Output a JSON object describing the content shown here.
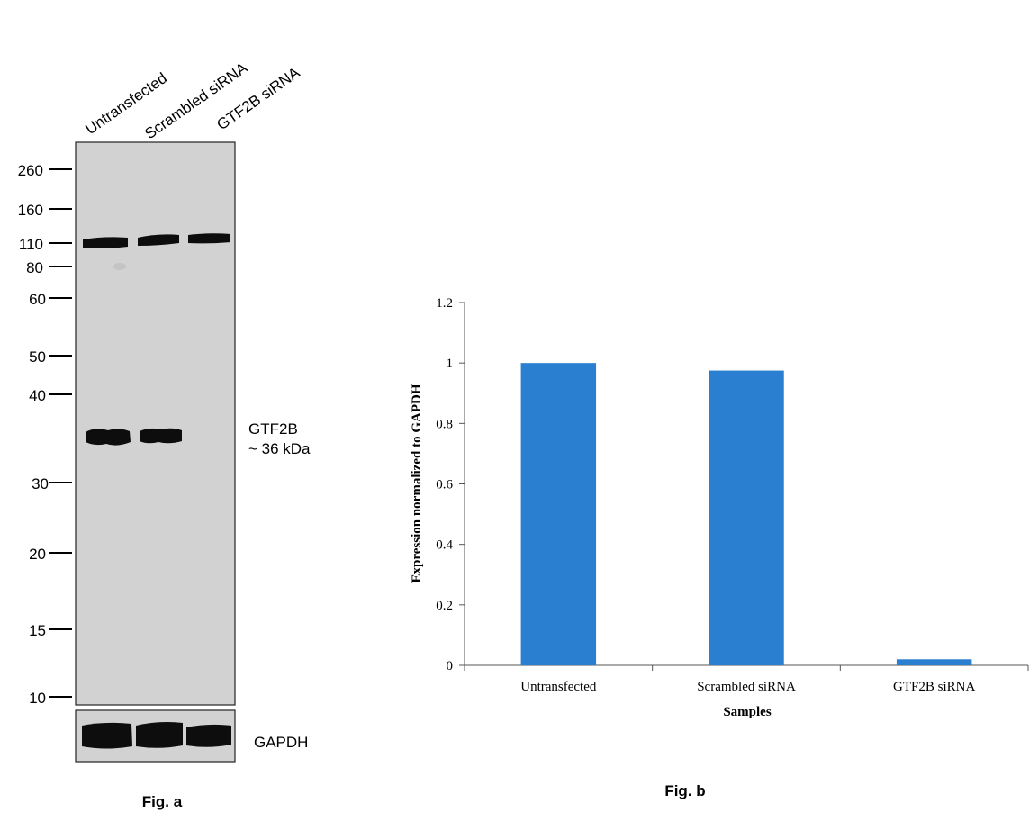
{
  "figure_a": {
    "lane_labels": [
      "Untransfected",
      "Scrambled siRNA",
      "GTF2B siRNA"
    ],
    "marker_labels": [
      "260",
      "160",
      "110",
      "80",
      "60",
      "50",
      "40",
      "30",
      "20",
      "15",
      "10"
    ],
    "target_label": "GTF2B",
    "target_size": "~ 36 kDa",
    "loading_control": "GAPDH",
    "caption": "Fig. a",
    "colors": {
      "membrane": "#d2d2d2",
      "band": "#0d0d0d"
    }
  },
  "figure_b": {
    "caption": "Fig. b"
  },
  "chart_data": {
    "type": "bar",
    "categories": [
      "Untransfected",
      "Scrambled siRNA",
      "GTF2B siRNA"
    ],
    "values": [
      1.0,
      0.975,
      0.02
    ],
    "ylim": [
      0,
      1.2
    ],
    "yticks": [
      "0",
      "0.2",
      "0.4",
      "0.6",
      "0.8",
      "1",
      "1.2"
    ],
    "ytick_values": [
      0,
      0.2,
      0.4,
      0.6,
      0.8,
      1.0,
      1.2
    ],
    "xlabel": "Samples",
    "ylabel": "Expression normalized to GAPDH",
    "bar_color": "#2b7fd0",
    "grid": false,
    "legend": "none"
  }
}
